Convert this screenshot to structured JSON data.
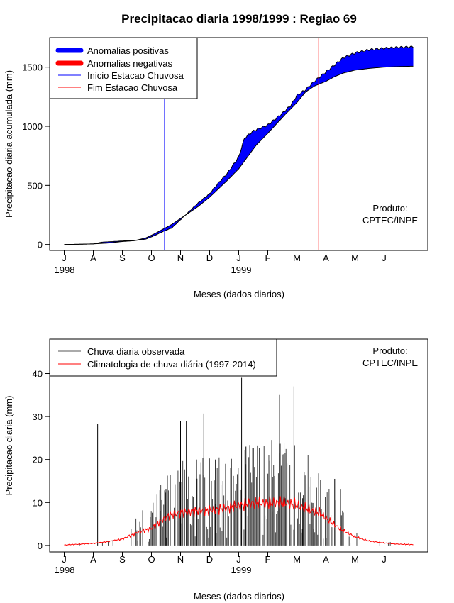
{
  "title": "Precipitacao diaria 1998/1999 : Regiao 69",
  "credit": {
    "line1": "Produto:",
    "line2": "CPTEC/INPE"
  },
  "colors": {
    "positive": "#0000ff",
    "negative": "#ff0000",
    "onset": "#0000ff",
    "end": "#ff0000",
    "observed": "#000000",
    "climatology": "#ff0000"
  },
  "months": [
    "J",
    "A",
    "S",
    "O",
    "N",
    "D",
    "J",
    "F",
    "M",
    "A",
    "M",
    "J"
  ],
  "years": [
    "1998",
    "1999"
  ],
  "xlabel": "Meses (dados diarios)",
  "top_legend": [
    "Anomalias positivas",
    "Anomalias negativas",
    "Inicio Estacao Chuvosa",
    "Fim Estacao Chuvosa"
  ],
  "bottom_legend": [
    "Chuva diaria observada",
    "Climatologia de chuva diária (1997-2014)"
  ],
  "chart_data": [
    {
      "type": "area",
      "title": "Precipitacao diaria 1998/1999 : Regiao 69",
      "xlabel": "Meses (dados diarios)",
      "ylabel": "Precipitacao diaria acumulada (mm)",
      "x_unit": "month index from Jul 1998 (0 = J 1998)",
      "xlim": [
        -0.5,
        12.5
      ],
      "ylim": [
        -50,
        1750
      ],
      "yticks": [
        0,
        500,
        1000,
        1500
      ],
      "onset_month": 3.45,
      "end_month": 8.75,
      "observed": [
        [
          0,
          0
        ],
        [
          0.5,
          2
        ],
        [
          1,
          5
        ],
        [
          1.3,
          20
        ],
        [
          1.6,
          24
        ],
        [
          2,
          30
        ],
        [
          2.4,
          33
        ],
        [
          2.8,
          45
        ],
        [
          3.1,
          75
        ],
        [
          3.4,
          110
        ],
        [
          3.7,
          140
        ],
        [
          4,
          210
        ],
        [
          4.3,
          280
        ],
        [
          4.6,
          350
        ],
        [
          5,
          430
        ],
        [
          5.3,
          520
        ],
        [
          5.6,
          600
        ],
        [
          6,
          740
        ],
        [
          6.2,
          900
        ],
        [
          6.5,
          960
        ],
        [
          7,
          1010
        ],
        [
          7.2,
          1050
        ],
        [
          7.5,
          1110
        ],
        [
          7.8,
          1180
        ],
        [
          8,
          1260
        ],
        [
          8.3,
          1310
        ],
        [
          8.6,
          1380
        ],
        [
          9,
          1460
        ],
        [
          9.3,
          1520
        ],
        [
          9.6,
          1580
        ],
        [
          10,
          1620
        ],
        [
          10.5,
          1648
        ],
        [
          11,
          1660
        ],
        [
          11.5,
          1668
        ],
        [
          12,
          1672
        ]
      ],
      "climatology": [
        [
          0,
          0
        ],
        [
          0.5,
          2
        ],
        [
          1,
          5
        ],
        [
          1.5,
          12
        ],
        [
          2,
          25
        ],
        [
          2.4,
          32
        ],
        [
          2.8,
          55
        ],
        [
          3.1,
          90
        ],
        [
          3.4,
          130
        ],
        [
          3.7,
          170
        ],
        [
          4,
          220
        ],
        [
          4.3,
          270
        ],
        [
          4.6,
          320
        ],
        [
          5,
          400
        ],
        [
          5.3,
          470
        ],
        [
          5.6,
          540
        ],
        [
          6,
          640
        ],
        [
          6.3,
          740
        ],
        [
          6.6,
          840
        ],
        [
          7,
          940
        ],
        [
          7.3,
          1020
        ],
        [
          7.6,
          1100
        ],
        [
          8,
          1200
        ],
        [
          8.3,
          1290
        ],
        [
          8.6,
          1340
        ],
        [
          9,
          1380
        ],
        [
          9.3,
          1420
        ],
        [
          9.6,
          1450
        ],
        [
          10,
          1475
        ],
        [
          10.5,
          1490
        ],
        [
          11,
          1500
        ],
        [
          11.5,
          1505
        ],
        [
          12,
          1508
        ]
      ]
    },
    {
      "type": "bar",
      "xlabel": "Meses (dados diarios)",
      "ylabel": "Precipitacao diaria (mm)",
      "x_unit": "month index from Jul 1998 (0 = J 1998)",
      "xlim": [
        -0.5,
        12.5
      ],
      "ylim": [
        -1.5,
        48
      ],
      "yticks": [
        0,
        10,
        20,
        30,
        40
      ],
      "observed_peaks": [
        [
          1.15,
          28.3
        ],
        [
          3.3,
          8
        ],
        [
          3.5,
          13
        ],
        [
          4,
          29
        ],
        [
          4.2,
          29
        ],
        [
          4.55,
          20
        ],
        [
          4.8,
          30.7
        ],
        [
          5.2,
          20
        ],
        [
          5.55,
          19
        ],
        [
          6.1,
          39
        ],
        [
          6.25,
          23
        ],
        [
          7.15,
          7.8
        ],
        [
          7.4,
          35
        ],
        [
          7.6,
          11
        ],
        [
          7.9,
          37
        ],
        [
          8.2,
          11
        ],
        [
          8.55,
          9.9
        ],
        [
          9.3,
          15.5
        ],
        [
          9.5,
          13
        ]
      ],
      "climatology": [
        [
          0,
          0.1
        ],
        [
          0.5,
          0.3
        ],
        [
          1,
          0.5
        ],
        [
          1.5,
          0.9
        ],
        [
          2,
          1.5
        ],
        [
          2.5,
          3
        ],
        [
          3,
          4
        ],
        [
          3.3,
          5.5
        ],
        [
          3.6,
          7
        ],
        [
          4,
          7.6
        ],
        [
          4.5,
          8
        ],
        [
          5,
          8.2
        ],
        [
          5.5,
          8.6
        ],
        [
          6,
          9.3
        ],
        [
          6.5,
          9.9
        ],
        [
          7,
          9.8
        ],
        [
          7.5,
          10
        ],
        [
          8,
          9.4
        ],
        [
          8.5,
          8.1
        ],
        [
          8.8,
          7.5
        ],
        [
          9.1,
          5.8
        ],
        [
          9.5,
          3.8
        ],
        [
          10,
          2
        ],
        [
          10.5,
          1
        ],
        [
          11,
          0.6
        ],
        [
          11.5,
          0.3
        ],
        [
          12,
          0.2
        ]
      ]
    }
  ]
}
